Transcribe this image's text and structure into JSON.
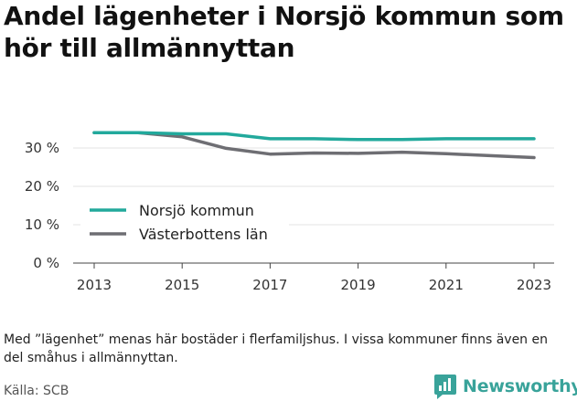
{
  "title": "Andel lägenheter i Norsjö kommun som hör till allmännyttan",
  "footnote": "Med ”lägenhet” menas här bostäder i flerfamiljshus. I vissa kommuner finns även en del småhus i allmännyttan.",
  "source": "Källa: SCB",
  "brand": {
    "name": "Newsworthy",
    "icon": "newsworthy-logo-icon",
    "color": "#39a39a"
  },
  "chart_data": {
    "type": "line",
    "title": "Andel lägenheter i Norsjö kommun som hör till allmännyttan",
    "xlabel": "",
    "ylabel": "",
    "x": [
      2013,
      2014,
      2015,
      2016,
      2017,
      2018,
      2019,
      2020,
      2021,
      2022,
      2023
    ],
    "xticks": [
      "2013",
      "2015",
      "2017",
      "2019",
      "2021",
      "2023"
    ],
    "yticks": [
      "0 %",
      "10 %",
      "20 %",
      "30 %"
    ],
    "ylim": [
      0,
      35
    ],
    "grid": true,
    "legend_position": "bottom-left",
    "series": [
      {
        "name": "Norsjö kommun",
        "color": "#22a99c",
        "values": [
          34.0,
          34.0,
          33.7,
          33.7,
          32.4,
          32.4,
          32.2,
          32.2,
          32.4,
          32.4,
          32.4
        ]
      },
      {
        "name": "Västerbottens län",
        "color": "#6e6e73",
        "values": [
          34.0,
          34.0,
          32.9,
          29.9,
          28.4,
          28.7,
          28.6,
          28.9,
          28.5,
          28.0,
          27.5
        ]
      }
    ]
  }
}
